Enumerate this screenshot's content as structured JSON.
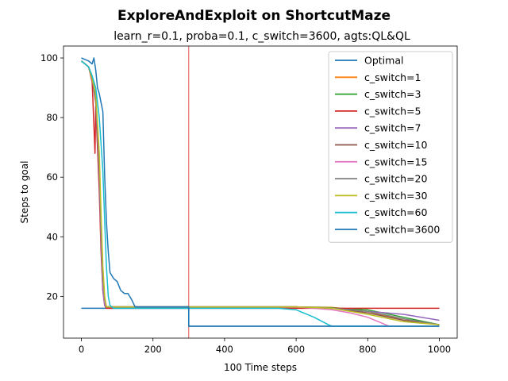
{
  "chart_data": {
    "type": "line",
    "title": "ExploreAndExploit on ShortcutMaze",
    "subtitle": "learn_r=0.1, proba=0.1, c_switch=3600, agts:QL&QL",
    "xlabel": "100 Time steps",
    "ylabel": "Steps to goal",
    "xlim": [
      -50,
      1050
    ],
    "ylim": [
      6,
      104
    ],
    "xticks": [
      0,
      200,
      400,
      600,
      800,
      1000
    ],
    "yticks": [
      20,
      40,
      60,
      80,
      100
    ],
    "grid": false,
    "legend_position": "top-right",
    "vertical_line": {
      "x": 300,
      "color": "#d62728"
    },
    "series": [
      {
        "name": "Optimal",
        "color": "#1f77b4",
        "step": true,
        "x": [
          0,
          300,
          300,
          1000
        ],
        "y": [
          16,
          16,
          10,
          10
        ]
      },
      {
        "name": "c_switch=1",
        "color": "#ff7f0e",
        "x": [
          0,
          10,
          20,
          30,
          40,
          50,
          55,
          60,
          65,
          70,
          80,
          300,
          600,
          700,
          800,
          900,
          1000
        ],
        "y": [
          99,
          98,
          97,
          93,
          85,
          60,
          38,
          22,
          17,
          16.5,
          16.5,
          16.5,
          16.5,
          16.3,
          15,
          12,
          10.5
        ]
      },
      {
        "name": "c_switch=3",
        "color": "#2ca02c",
        "x": [
          0,
          10,
          20,
          30,
          40,
          50,
          55,
          60,
          65,
          70,
          80,
          300,
          600,
          700,
          800,
          900,
          1000
        ],
        "y": [
          99,
          98,
          97,
          94,
          87,
          62,
          40,
          24,
          18,
          16.5,
          16.5,
          16.5,
          16.5,
          16.2,
          15.5,
          13,
          10.5
        ]
      },
      {
        "name": "c_switch=5",
        "color": "#d62728",
        "x": [
          0,
          10,
          20,
          30,
          38,
          40,
          45,
          50,
          55,
          60,
          65,
          70,
          80,
          300,
          1000
        ],
        "y": [
          99,
          98,
          97,
          92,
          68,
          84,
          70,
          55,
          35,
          22,
          17,
          16,
          16,
          16,
          16
        ]
      },
      {
        "name": "c_switch=7",
        "color": "#9467bd",
        "x": [
          0,
          10,
          20,
          30,
          40,
          50,
          55,
          60,
          65,
          70,
          80,
          300,
          600,
          700,
          800,
          900,
          950,
          1000
        ],
        "y": [
          99,
          98,
          97,
          93,
          86,
          60,
          38,
          22,
          17,
          16.5,
          16.5,
          16.5,
          16.5,
          16,
          15,
          14,
          13,
          12
        ]
      },
      {
        "name": "c_switch=10",
        "color": "#8c564b",
        "x": [
          0,
          10,
          20,
          30,
          40,
          50,
          55,
          60,
          65,
          70,
          80,
          300,
          600,
          700,
          800,
          900,
          1000
        ],
        "y": [
          99,
          98,
          97,
          93,
          85,
          62,
          40,
          25,
          18,
          16.5,
          16.5,
          16.5,
          16.5,
          16,
          14.5,
          12,
          10.5
        ]
      },
      {
        "name": "c_switch=15",
        "color": "#e377c2",
        "x": [
          0,
          10,
          20,
          30,
          40,
          50,
          55,
          60,
          65,
          70,
          80,
          300,
          600,
          700,
          750,
          800,
          840,
          860,
          1000
        ],
        "y": [
          99,
          98,
          97,
          93,
          86,
          63,
          40,
          25,
          18,
          16.5,
          16.5,
          16.5,
          16.5,
          15.5,
          14.5,
          13,
          11,
          10,
          10
        ]
      },
      {
        "name": "c_switch=20",
        "color": "#7f7f7f",
        "x": [
          0,
          10,
          20,
          30,
          40,
          50,
          55,
          60,
          65,
          70,
          80,
          300,
          600,
          700,
          800,
          900,
          1000
        ],
        "y": [
          99,
          98,
          97,
          93,
          86,
          64,
          42,
          26,
          19,
          16.5,
          16.5,
          16.5,
          16.5,
          16,
          15,
          12.5,
          10.5
        ]
      },
      {
        "name": "c_switch=30",
        "color": "#bcbd22",
        "x": [
          0,
          10,
          20,
          30,
          40,
          50,
          55,
          60,
          65,
          70,
          80,
          300,
          600,
          700,
          800,
          900,
          1000
        ],
        "y": [
          99,
          98,
          97,
          93,
          88,
          68,
          48,
          30,
          20,
          16.5,
          16.5,
          16.5,
          16.5,
          16,
          14,
          11.5,
          10.5
        ]
      },
      {
        "name": "c_switch=60",
        "color": "#17becf",
        "x": [
          0,
          10,
          20,
          30,
          40,
          50,
          60,
          65,
          70,
          75,
          80,
          90,
          300,
          550,
          600,
          650,
          690,
          700,
          1000
        ],
        "y": [
          99,
          98,
          97,
          94,
          90,
          80,
          62,
          45,
          30,
          20,
          17,
          16,
          16,
          16,
          15.5,
          13,
          10.5,
          10,
          10
        ]
      },
      {
        "name": "c_switch=3600",
        "color": "#1f77b4",
        "x": [
          0,
          10,
          20,
          30,
          35,
          40,
          45,
          50,
          55,
          60,
          65,
          70,
          75,
          80,
          85,
          90,
          100,
          110,
          120,
          130,
          140,
          150,
          300,
          300,
          1000
        ],
        "y": [
          100,
          99.5,
          99,
          98,
          100,
          96,
          90,
          88,
          85,
          82,
          60,
          45,
          35,
          28,
          27,
          26,
          25,
          22,
          21,
          21,
          19,
          16.5,
          16.5,
          10,
          10
        ]
      }
    ]
  }
}
